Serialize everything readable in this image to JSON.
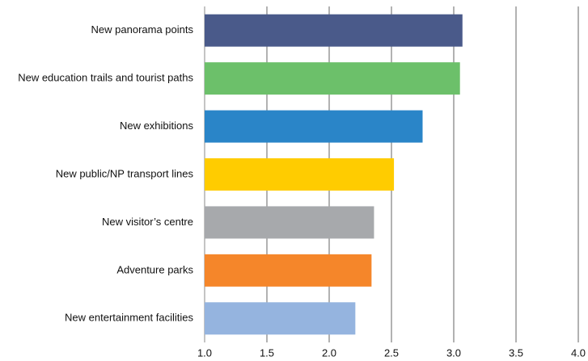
{
  "chart_data": {
    "type": "hbar",
    "categories": [
      "New panorama points",
      "New education trails and tourist paths",
      "New exhibitions",
      "New public/NP transport lines",
      "New visitor’s centre",
      "Adventure parks",
      "New entertainment facilities"
    ],
    "values": [
      3.07,
      3.05,
      2.75,
      2.52,
      2.36,
      2.34,
      2.21
    ],
    "colors": [
      "#4a5a8a",
      "#6cc06a",
      "#2a85c8",
      "#ffcc00",
      "#a7a9ac",
      "#f5862a",
      "#95b4df"
    ],
    "xlim": [
      1,
      4
    ],
    "xticks": [
      {
        "value": 1,
        "label": "1.0"
      },
      1.5,
      {
        "value": 2,
        "label": "2.0"
      },
      2.5,
      {
        "value": 3,
        "label": "3.0"
      },
      3.5,
      {
        "value": 4,
        "label": "4.0"
      }
    ],
    "grid": true
  }
}
